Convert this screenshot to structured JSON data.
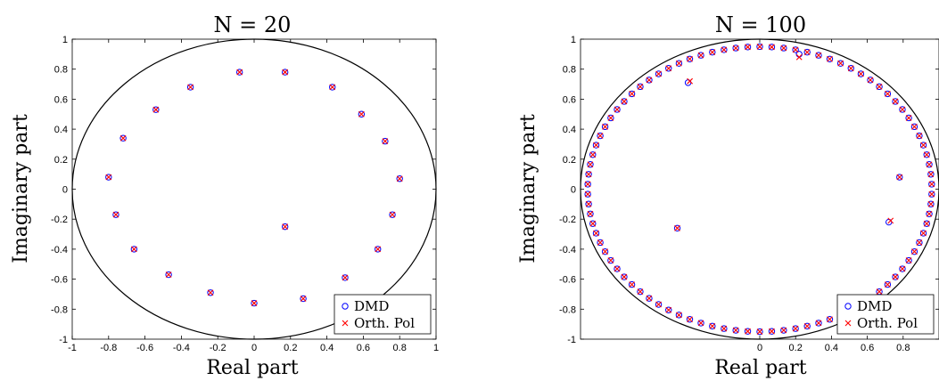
{
  "chart_data": [
    {
      "type": "scatter",
      "title": "N = 20",
      "xlabel": "Real part",
      "ylabel": "Imaginary part",
      "xlim": [
        -1,
        1
      ],
      "ylim": [
        -1,
        1
      ],
      "xticks": [
        "-1",
        "-0.8",
        "-0.6",
        "-0.4",
        "-0.2",
        "0",
        "0.2",
        "0.4",
        "0.6",
        "0.8",
        "1"
      ],
      "yticks": [
        "-1",
        "-0.8",
        "-0.6",
        "-0.4",
        "-0.2",
        "0",
        "0.2",
        "0.4",
        "0.6",
        "0.8",
        "1"
      ],
      "unit_circle": true,
      "grid": false,
      "legend_position": "bottom-right",
      "series": [
        {
          "name": "DMD",
          "marker": "circle",
          "color": "#0000ff",
          "points": [
            [
              -0.08,
              0.78
            ],
            [
              0.17,
              0.78
            ],
            [
              -0.35,
              0.68
            ],
            [
              0.43,
              0.68
            ],
            [
              -0.54,
              0.53
            ],
            [
              0.59,
              0.5
            ],
            [
              -0.72,
              0.34
            ],
            [
              0.72,
              0.32
            ],
            [
              -0.8,
              0.08
            ],
            [
              0.8,
              0.07
            ],
            [
              -0.76,
              -0.17
            ],
            [
              0.76,
              -0.17
            ],
            [
              -0.66,
              -0.4
            ],
            [
              0.68,
              -0.4
            ],
            [
              0.17,
              -0.25
            ],
            [
              -0.47,
              -0.57
            ],
            [
              0.5,
              -0.59
            ],
            [
              -0.24,
              -0.69
            ],
            [
              0.27,
              -0.73
            ],
            [
              0.0,
              -0.76
            ]
          ]
        },
        {
          "name": "Orth. Pol",
          "marker": "x",
          "color": "#ff0000",
          "points": [
            [
              -0.08,
              0.78
            ],
            [
              0.17,
              0.78
            ],
            [
              -0.35,
              0.68
            ],
            [
              0.43,
              0.68
            ],
            [
              -0.54,
              0.53
            ],
            [
              0.59,
              0.5
            ],
            [
              -0.72,
              0.34
            ],
            [
              0.72,
              0.32
            ],
            [
              -0.8,
              0.08
            ],
            [
              0.8,
              0.07
            ],
            [
              -0.76,
              -0.17
            ],
            [
              0.76,
              -0.17
            ],
            [
              -0.66,
              -0.4
            ],
            [
              0.68,
              -0.4
            ],
            [
              0.17,
              -0.25
            ],
            [
              -0.47,
              -0.57
            ],
            [
              0.5,
              -0.59
            ],
            [
              -0.24,
              -0.69
            ],
            [
              0.27,
              -0.73
            ],
            [
              0.0,
              -0.76
            ]
          ]
        }
      ]
    },
    {
      "type": "scatter",
      "title": "N = 100",
      "xlabel": "Real part",
      "ylabel": "Imaginary part",
      "xlim": [
        -1,
        1
      ],
      "ylim": [
        -1,
        1
      ],
      "xticks": [
        "0",
        "0.2",
        "0.4",
        "0.6",
        "0.8"
      ],
      "yticks": [
        "-1",
        "-0.8",
        "-0.6",
        "-0.4",
        "-0.2",
        "0",
        "0.2",
        "0.4",
        "0.6",
        "0.8",
        "1"
      ],
      "unit_circle": true,
      "grid": false,
      "legend_position": "bottom-right",
      "series": [
        {
          "name": "DMD",
          "marker": "circle",
          "color": "#0000ff",
          "ring_eigenvalue_count": 90,
          "ring_radius_x": 0.96,
          "ring_radius_y": 0.95,
          "extra_points": [
            [
              -0.46,
              -0.26
            ],
            [
              0.78,
              0.08
            ],
            [
              0.72,
              -0.22
            ],
            [
              -0.4,
              0.71
            ],
            [
              0.22,
              0.9
            ]
          ]
        },
        {
          "name": "Orth. Pol",
          "marker": "x",
          "color": "#ff0000",
          "ring_eigenvalue_count": 90,
          "ring_radius_x": 0.96,
          "ring_radius_y": 0.95,
          "extra_points": [
            [
              -0.46,
              -0.26
            ],
            [
              0.78,
              0.08
            ],
            [
              0.73,
              -0.21
            ],
            [
              -0.39,
              0.72
            ],
            [
              0.22,
              0.88
            ]
          ]
        }
      ]
    }
  ]
}
